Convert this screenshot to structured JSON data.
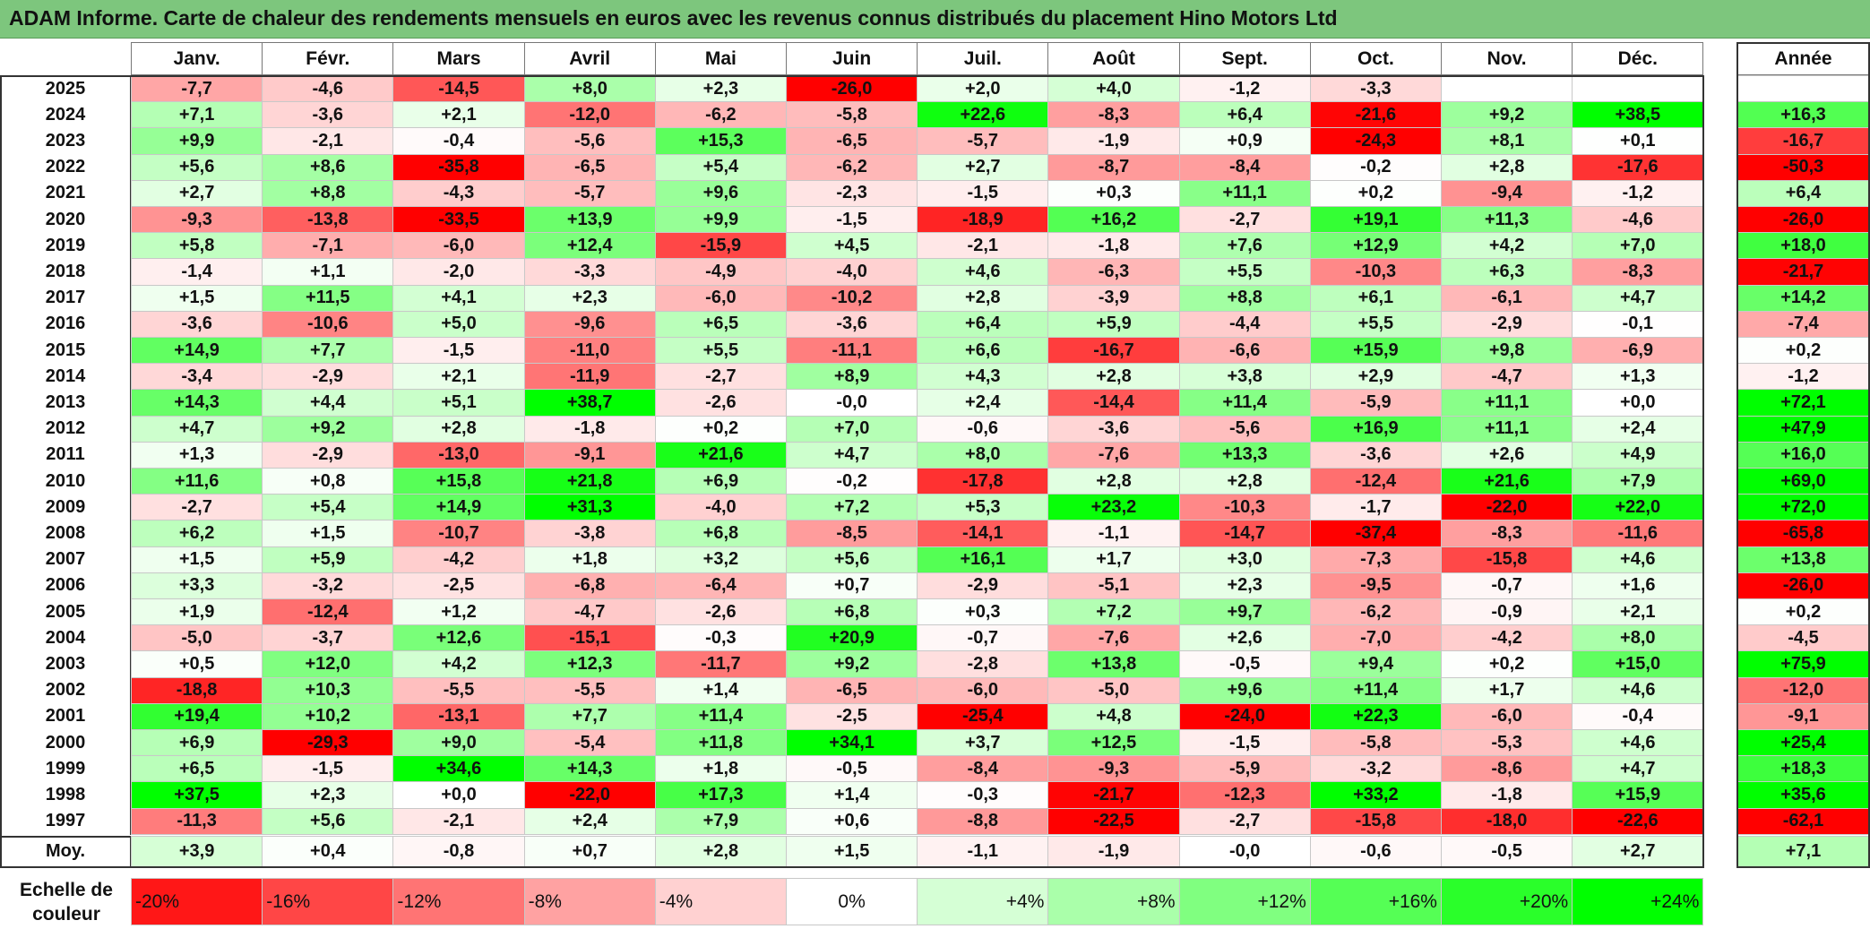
{
  "title": "ADAM Informe. Carte de chaleur des rendements mensuels en euros avec les revenus connus distribués du placement Hino Motors Ltd",
  "chart_data": {
    "type": "heatmap",
    "months": [
      "Janv.",
      "Févr.",
      "Mars",
      "Avril",
      "Mai",
      "Juin",
      "Juil.",
      "Août",
      "Sept.",
      "Oct.",
      "Nov.",
      "Déc."
    ],
    "year_column_header": "Année",
    "average_row_label": "Moy.",
    "rows": [
      {
        "year": "2025",
        "values": [
          "-7,7",
          "-4,6",
          "-14,5",
          "+8,0",
          "+2,3",
          "-26,0",
          "+2,0",
          "+4,0",
          "-1,2",
          "-3,3",
          "",
          ""
        ],
        "annual": ""
      },
      {
        "year": "2024",
        "values": [
          "+7,1",
          "-3,6",
          "+2,1",
          "-12,0",
          "-6,2",
          "-5,8",
          "+22,6",
          "-8,3",
          "+6,4",
          "-21,6",
          "+9,2",
          "+38,5"
        ],
        "annual": "+16,3"
      },
      {
        "year": "2023",
        "values": [
          "+9,9",
          "-2,1",
          "-0,4",
          "-5,6",
          "+15,3",
          "-6,5",
          "-5,7",
          "-1,9",
          "+0,9",
          "-24,3",
          "+8,1",
          "+0,1"
        ],
        "annual": "-16,7"
      },
      {
        "year": "2022",
        "values": [
          "+5,6",
          "+8,6",
          "-35,8",
          "-6,5",
          "+5,4",
          "-6,2",
          "+2,7",
          "-8,7",
          "-8,4",
          "-0,2",
          "+2,8",
          "-17,6"
        ],
        "annual": "-50,3"
      },
      {
        "year": "2021",
        "values": [
          "+2,7",
          "+8,8",
          "-4,3",
          "-5,7",
          "+9,6",
          "-2,3",
          "-1,5",
          "+0,3",
          "+11,1",
          "+0,2",
          "-9,4",
          "-1,2"
        ],
        "annual": "+6,4"
      },
      {
        "year": "2020",
        "values": [
          "-9,3",
          "-13,8",
          "-33,5",
          "+13,9",
          "+9,9",
          "-1,5",
          "-18,9",
          "+16,2",
          "-2,7",
          "+19,1",
          "+11,3",
          "-4,6"
        ],
        "annual": "-26,0"
      },
      {
        "year": "2019",
        "values": [
          "+5,8",
          "-7,1",
          "-6,0",
          "+12,4",
          "-15,9",
          "+4,5",
          "-2,1",
          "-1,8",
          "+7,6",
          "+12,9",
          "+4,2",
          "+7,0"
        ],
        "annual": "+18,0"
      },
      {
        "year": "2018",
        "values": [
          "-1,4",
          "+1,1",
          "-2,0",
          "-3,3",
          "-4,9",
          "-4,0",
          "+4,6",
          "-6,3",
          "+5,5",
          "-10,3",
          "+6,3",
          "-8,3"
        ],
        "annual": "-21,7"
      },
      {
        "year": "2017",
        "values": [
          "+1,5",
          "+11,5",
          "+4,1",
          "+2,3",
          "-6,0",
          "-10,2",
          "+2,8",
          "-3,9",
          "+8,8",
          "+6,1",
          "-6,1",
          "+4,7"
        ],
        "annual": "+14,2"
      },
      {
        "year": "2016",
        "values": [
          "-3,6",
          "-10,6",
          "+5,0",
          "-9,6",
          "+6,5",
          "-3,6",
          "+6,4",
          "+5,9",
          "-4,4",
          "+5,5",
          "-2,9",
          "-0,1"
        ],
        "annual": "-7,4"
      },
      {
        "year": "2015",
        "values": [
          "+14,9",
          "+7,7",
          "-1,5",
          "-11,0",
          "+5,5",
          "-11,1",
          "+6,6",
          "-16,7",
          "-6,6",
          "+15,9",
          "+9,8",
          "-6,9"
        ],
        "annual": "+0,2"
      },
      {
        "year": "2014",
        "values": [
          "-3,4",
          "-2,9",
          "+2,1",
          "-11,9",
          "-2,7",
          "+8,9",
          "+4,3",
          "+2,8",
          "+3,8",
          "+2,9",
          "-4,7",
          "+1,3"
        ],
        "annual": "-1,2"
      },
      {
        "year": "2013",
        "values": [
          "+14,3",
          "+4,4",
          "+5,1",
          "+38,7",
          "-2,6",
          "-0,0",
          "+2,4",
          "-14,4",
          "+11,4",
          "-5,9",
          "+11,1",
          "+0,0"
        ],
        "annual": "+72,1"
      },
      {
        "year": "2012",
        "values": [
          "+4,7",
          "+9,2",
          "+2,8",
          "-1,8",
          "+0,2",
          "+7,0",
          "-0,6",
          "-3,6",
          "-5,6",
          "+16,9",
          "+11,1",
          "+2,4"
        ],
        "annual": "+47,9"
      },
      {
        "year": "2011",
        "values": [
          "+1,3",
          "-2,9",
          "-13,0",
          "-9,1",
          "+21,6",
          "+4,7",
          "+8,0",
          "-7,6",
          "+13,3",
          "-3,6",
          "+2,6",
          "+4,9"
        ],
        "annual": "+16,0"
      },
      {
        "year": "2010",
        "values": [
          "+11,6",
          "+0,8",
          "+15,8",
          "+21,8",
          "+6,9",
          "-0,2",
          "-17,8",
          "+2,8",
          "+2,8",
          "-12,4",
          "+21,6",
          "+7,9"
        ],
        "annual": "+69,0"
      },
      {
        "year": "2009",
        "values": [
          "-2,7",
          "+5,4",
          "+14,9",
          "+31,3",
          "-4,0",
          "+7,2",
          "+5,3",
          "+23,2",
          "-10,3",
          "-1,7",
          "-22,0",
          "+22,0"
        ],
        "annual": "+72,0"
      },
      {
        "year": "2008",
        "values": [
          "+6,2",
          "+1,5",
          "-10,7",
          "-3,8",
          "+6,8",
          "-8,5",
          "-14,1",
          "-1,1",
          "-14,7",
          "-37,4",
          "-8,3",
          "-11,6"
        ],
        "annual": "-65,8"
      },
      {
        "year": "2007",
        "values": [
          "+1,5",
          "+5,9",
          "-4,2",
          "+1,8",
          "+3,2",
          "+5,6",
          "+16,1",
          "+1,7",
          "+3,0",
          "-7,3",
          "-15,8",
          "+4,6"
        ],
        "annual": "+13,8"
      },
      {
        "year": "2006",
        "values": [
          "+3,3",
          "-3,2",
          "-2,5",
          "-6,8",
          "-6,4",
          "+0,7",
          "-2,9",
          "-5,1",
          "+2,3",
          "-9,5",
          "-0,7",
          "+1,6"
        ],
        "annual": "-26,0"
      },
      {
        "year": "2005",
        "values": [
          "+1,9",
          "-12,4",
          "+1,2",
          "-4,7",
          "-2,6",
          "+6,8",
          "+0,3",
          "+7,2",
          "+9,7",
          "-6,2",
          "-0,9",
          "+2,1"
        ],
        "annual": "+0,2"
      },
      {
        "year": "2004",
        "values": [
          "-5,0",
          "-3,7",
          "+12,6",
          "-15,1",
          "-0,3",
          "+20,9",
          "-0,7",
          "-7,6",
          "+2,6",
          "-7,0",
          "-4,2",
          "+8,0"
        ],
        "annual": "-4,5"
      },
      {
        "year": "2003",
        "values": [
          "+0,5",
          "+12,0",
          "+4,2",
          "+12,3",
          "-11,7",
          "+9,2",
          "-2,8",
          "+13,8",
          "-0,5",
          "+9,4",
          "+0,2",
          "+15,0"
        ],
        "annual": "+75,9"
      },
      {
        "year": "2002",
        "values": [
          "-18,8",
          "+10,3",
          "-5,5",
          "-5,5",
          "+1,4",
          "-6,5",
          "-6,0",
          "-5,0",
          "+9,6",
          "+11,4",
          "+1,7",
          "+4,6"
        ],
        "annual": "-12,0"
      },
      {
        "year": "2001",
        "values": [
          "+19,4",
          "+10,2",
          "-13,1",
          "+7,7",
          "+11,4",
          "-2,5",
          "-25,4",
          "+4,8",
          "-24,0",
          "+22,3",
          "-6,0",
          "-0,4"
        ],
        "annual": "-9,1"
      },
      {
        "year": "2000",
        "values": [
          "+6,9",
          "-29,3",
          "+9,0",
          "-5,4",
          "+11,8",
          "+34,1",
          "+3,7",
          "+12,5",
          "-1,5",
          "-5,8",
          "-5,3",
          "+4,6"
        ],
        "annual": "+25,4"
      },
      {
        "year": "1999",
        "values": [
          "+6,5",
          "-1,5",
          "+34,6",
          "+14,3",
          "+1,8",
          "-0,5",
          "-8,4",
          "-9,3",
          "-5,9",
          "-3,2",
          "-8,6",
          "+4,7"
        ],
        "annual": "+18,3"
      },
      {
        "year": "1998",
        "values": [
          "+37,5",
          "+2,3",
          "+0,0",
          "-22,0",
          "+17,3",
          "+1,4",
          "-0,3",
          "-21,7",
          "-12,3",
          "+33,2",
          "-1,8",
          "+15,9"
        ],
        "annual": "+35,6"
      },
      {
        "year": "1997",
        "values": [
          "-11,3",
          "+5,6",
          "-2,1",
          "+2,4",
          "+7,9",
          "+0,6",
          "-8,8",
          "-22,5",
          "-2,7",
          "-15,8",
          "-18,0",
          "-22,6"
        ],
        "annual": "-62,1"
      }
    ],
    "averages": [
      "+3,9",
      "+0,4",
      "-0,8",
      "+0,7",
      "+2,8",
      "+1,5",
      "-1,1",
      "-1,9",
      "-0,0",
      "-0,6",
      "-0,5",
      "+2,7"
    ],
    "average_annual": "+7,1",
    "scale_label": "Echelle de couleur",
    "scale": [
      "-20%",
      "-16%",
      "-12%",
      "-8%",
      "-4%",
      "0%",
      "+4%",
      "+8%",
      "+12%",
      "+16%",
      "+20%",
      "+24%"
    ],
    "scale_values": [
      -20,
      -16,
      -12,
      -8,
      -4,
      0,
      4,
      8,
      12,
      16,
      20,
      24
    ],
    "colors": {
      "negative_max": "#ff0000",
      "neutral": "#ffffff",
      "positive_max": "#00ff00",
      "title_bar": "#7dc67d"
    }
  }
}
